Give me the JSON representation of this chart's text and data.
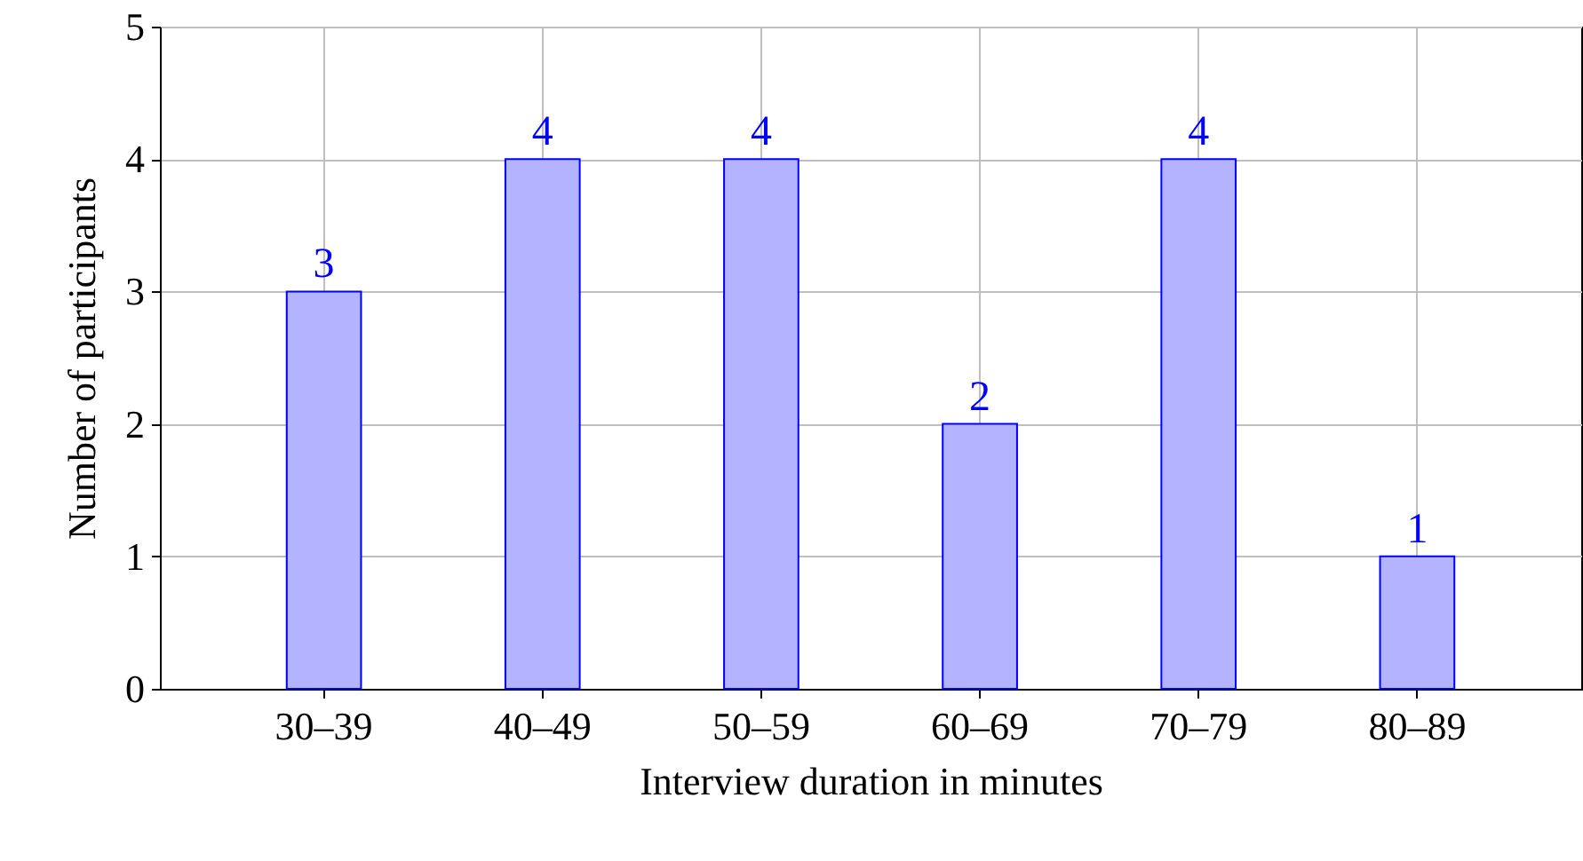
{
  "chart_data": {
    "type": "bar",
    "xlabel": "Interview duration in minutes",
    "ylabel": "Number of participants",
    "categories": [
      "30–39",
      "40–49",
      "50–59",
      "60–69",
      "70–79",
      "80–89"
    ],
    "values": [
      3,
      4,
      4,
      2,
      4,
      1
    ],
    "color": "#b3b3ff",
    "ylim": [
      0,
      5
    ],
    "yticks": [
      0,
      1,
      2,
      3,
      4,
      5
    ],
    "grid": true,
    "data_labels": true
  }
}
